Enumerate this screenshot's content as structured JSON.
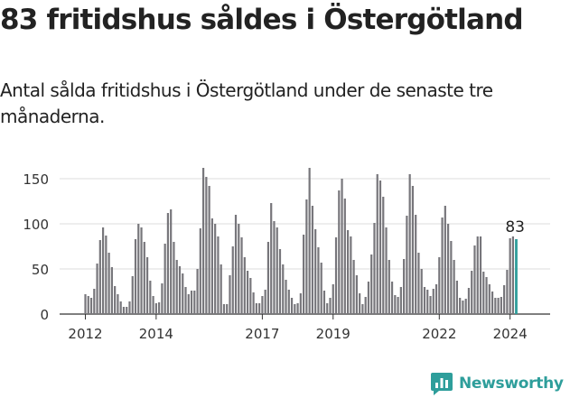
{
  "title": "83 fritidshus såldes i Östergötland",
  "subtitle": "Antal sålda fritidshus i Östergötland under de senaste tre månaderna.",
  "brand": {
    "name": "Newsworthy",
    "color": "#2e9e9b"
  },
  "chart_data": {
    "type": "bar",
    "title": "",
    "xlabel": "",
    "ylabel": "",
    "x_unit": "month",
    "start": "2012-01",
    "ylim": [
      0,
      160
    ],
    "yticks": [
      0,
      50,
      100,
      150
    ],
    "xtick_labels": [
      "2012",
      "2014",
      "2017",
      "2019",
      "2022",
      "2024"
    ],
    "grid": true,
    "bar_color": "#77767b",
    "highlight_color": "#2e9e9b",
    "highlight_label": "83",
    "values": [
      22,
      20,
      18,
      28,
      56,
      82,
      96,
      87,
      68,
      52,
      31,
      22,
      14,
      8,
      8,
      14,
      42,
      83,
      100,
      96,
      80,
      63,
      37,
      20,
      12,
      13,
      34,
      78,
      112,
      116,
      80,
      60,
      53,
      45,
      30,
      22,
      26,
      26,
      50,
      95,
      162,
      152,
      142,
      106,
      100,
      86,
      55,
      11,
      11,
      43,
      75,
      110,
      100,
      85,
      63,
      48,
      40,
      24,
      12,
      12,
      20,
      27,
      80,
      123,
      103,
      96,
      72,
      55,
      38,
      27,
      18,
      11,
      12,
      23,
      88,
      127,
      162,
      120,
      94,
      74,
      57,
      26,
      12,
      18,
      33,
      85,
      137,
      150,
      128,
      93,
      86,
      60,
      43,
      23,
      11,
      19,
      36,
      66,
      101,
      155,
      148,
      130,
      96,
      60,
      36,
      21,
      19,
      30,
      61,
      109,
      155,
      142,
      110,
      68,
      50,
      30,
      27,
      20,
      28,
      33,
      63,
      107,
      120,
      100,
      81,
      60,
      37,
      18,
      15,
      17,
      29,
      48,
      76,
      86,
      86,
      47,
      41,
      33,
      25,
      18,
      18,
      19,
      32,
      49,
      84,
      86,
      83
    ]
  }
}
